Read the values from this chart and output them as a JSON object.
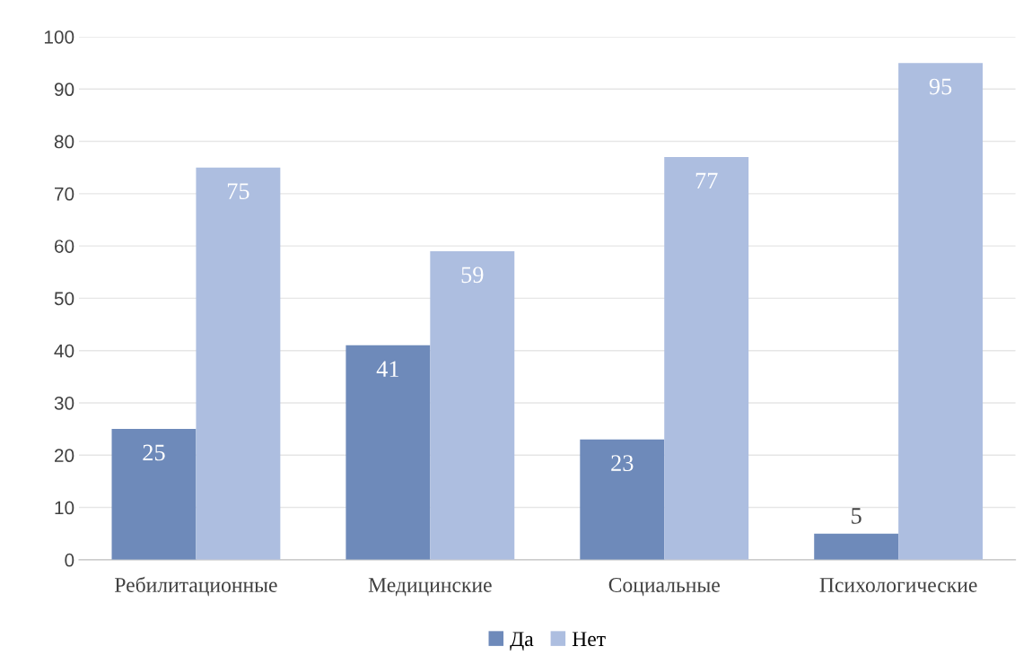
{
  "chart_data": {
    "type": "bar",
    "categories": [
      "Ребилитационные",
      "Медицинские",
      "Социальные",
      "Психологические"
    ],
    "series": [
      {
        "name": "Да",
        "color": "#6e8aba",
        "values": [
          25,
          41,
          23,
          5
        ]
      },
      {
        "name": "Нет",
        "color": "#adbee0",
        "values": [
          75,
          59,
          77,
          95
        ]
      }
    ],
    "ylim": [
      0,
      100
    ],
    "yticks": [
      0,
      10,
      20,
      30,
      40,
      50,
      60,
      70,
      80,
      90,
      100
    ],
    "grid": "y",
    "legend": "bottom",
    "data_labels": true
  }
}
